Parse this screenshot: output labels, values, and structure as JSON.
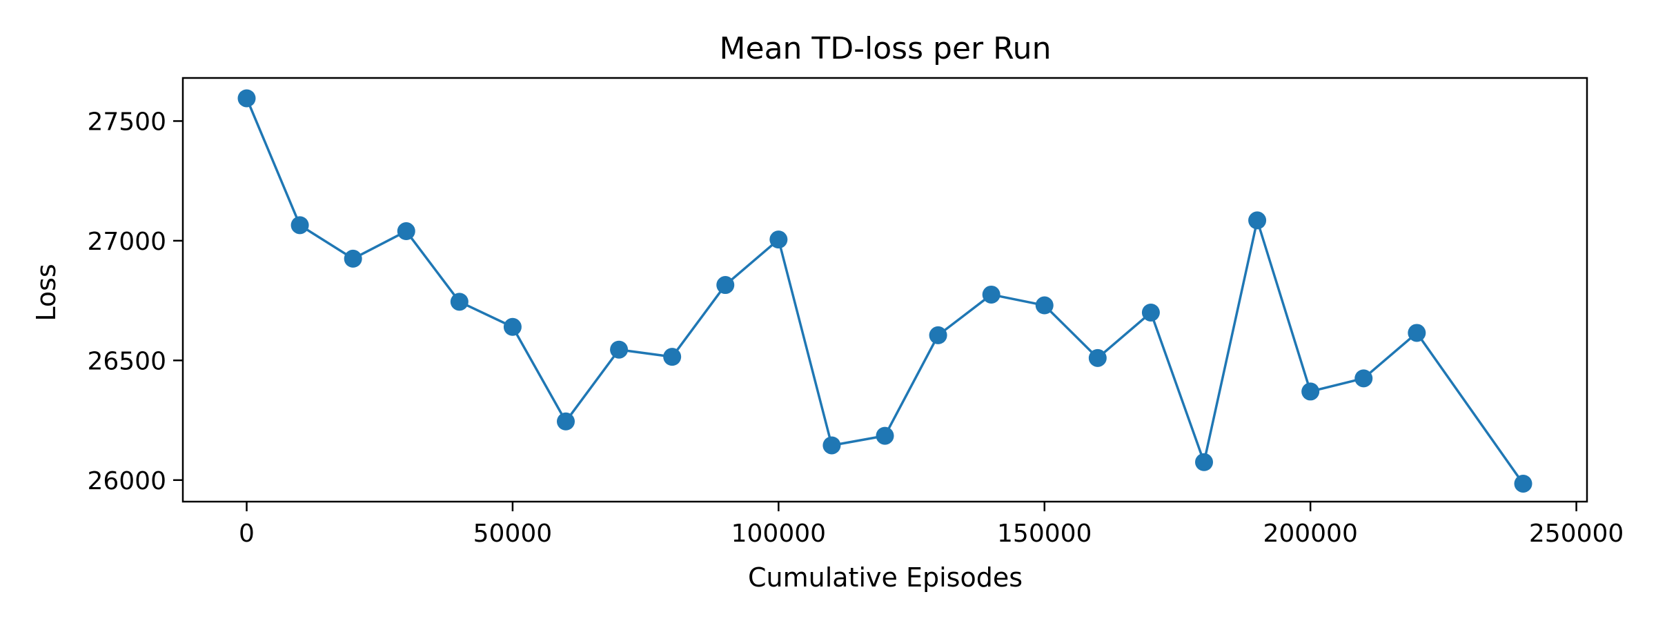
{
  "chart_data": {
    "type": "line",
    "title": "Mean TD-loss per Run",
    "xlabel": "Cumulative Episodes",
    "ylabel": "Loss",
    "xlim": [
      -12000,
      252000
    ],
    "ylim": [
      25910,
      27680
    ],
    "x_ticks": [
      0,
      50000,
      100000,
      150000,
      200000,
      250000
    ],
    "y_ticks": [
      26000,
      26500,
      27000,
      27500
    ],
    "grid": false,
    "legend": "none",
    "colors": {
      "series": "#1f77b4",
      "axes": "#000000",
      "background": "#ffffff"
    },
    "series": [
      {
        "marker": "circle",
        "x": [
          0,
          10000,
          20000,
          30000,
          40000,
          50000,
          60000,
          70000,
          80000,
          90000,
          100000,
          110000,
          120000,
          130000,
          140000,
          150000,
          160000,
          170000,
          180000,
          190000,
          200000,
          210000,
          220000,
          240000
        ],
        "y": [
          27595,
          27065,
          26925,
          27040,
          26745,
          26640,
          26245,
          26545,
          26515,
          26815,
          27005,
          26145,
          26185,
          26605,
          26775,
          26730,
          26510,
          26700,
          26075,
          27085,
          26370,
          26425,
          26615,
          25985
        ]
      }
    ]
  }
}
